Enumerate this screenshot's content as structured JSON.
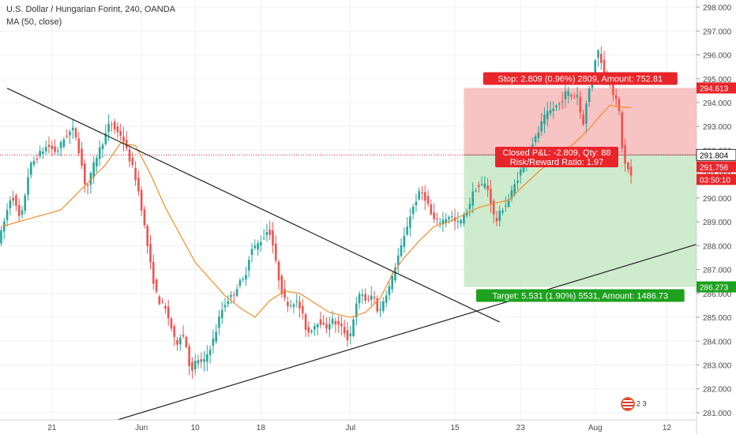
{
  "header": {
    "title": "U.S. Dollar / Hungarian Forint, 240, OANDA",
    "indicator": "MA (50, close)"
  },
  "colors": {
    "up": "#26a69a",
    "down": "#ef5350",
    "ma": "#f28c28",
    "stop_zone": "#f7b9b9",
    "target_zone": "#c9e9c9",
    "stop_label": "#e8252a",
    "target_label": "#1ea11e",
    "trendline": "#222222",
    "price_line": "#e8252a",
    "grid": "#eef0f3"
  },
  "logo": {
    "icon": "tradingview-flag-badge-icon",
    "pages": "2 3"
  },
  "chart_data": {
    "type": "candlestick",
    "symbol": "USDHUF",
    "interval": "240",
    "source": "OANDA",
    "ylim": [
      280.7,
      298.3
    ],
    "y_ticks": [
      281,
      282,
      283,
      284,
      285,
      286,
      287,
      288,
      289,
      290,
      291,
      292,
      293,
      294,
      295,
      296,
      297,
      298
    ],
    "y_tick_labels": [
      "281.000",
      "282.000",
      "283.000",
      "284.000",
      "285.000",
      "286.000",
      "287.000",
      "288.000",
      "289.000",
      "290.000",
      "291.000",
      "292.000",
      "293.000",
      "294.000",
      "295.000",
      "296.000",
      "297.000",
      "298.000"
    ],
    "x_ticks": [
      {
        "label": "21",
        "index": 17
      },
      {
        "label": "Jun",
        "index": 47
      },
      {
        "label": "10",
        "index": 65
      },
      {
        "label": "18",
        "index": 87
      },
      {
        "label": "Jul",
        "index": 117
      },
      {
        "label": "15",
        "index": 152
      },
      {
        "label": "23",
        "index": 174
      },
      {
        "label": "Aug",
        "index": 199
      },
      {
        "label": "12",
        "index": 223
      }
    ],
    "bar_count": 232,
    "anchors": [
      [
        0,
        288.3
      ],
      [
        4,
        290.2
      ],
      [
        7,
        289.0
      ],
      [
        10,
        291.3
      ],
      [
        13,
        291.8
      ],
      [
        16,
        292.2
      ],
      [
        19,
        291.9
      ],
      [
        22,
        292.6
      ],
      [
        25,
        292.9
      ],
      [
        27,
        291.7
      ],
      [
        29,
        290.3
      ],
      [
        32,
        291.6
      ],
      [
        35,
        292.5
      ],
      [
        37,
        293.2
      ],
      [
        39,
        292.8
      ],
      [
        41,
        292.6
      ],
      [
        43,
        291.8
      ],
      [
        45,
        291.1
      ],
      [
        47,
        290.0
      ],
      [
        49,
        288.4
      ],
      [
        51,
        286.8
      ],
      [
        53,
        285.7
      ],
      [
        55,
        285.5
      ],
      [
        57,
        284.8
      ],
      [
        59,
        283.8
      ],
      [
        61,
        284.4
      ],
      [
        63,
        283.6
      ],
      [
        64,
        282.5
      ],
      [
        66,
        283.3
      ],
      [
        68,
        283.0
      ],
      [
        70,
        283.6
      ],
      [
        72,
        284.2
      ],
      [
        74,
        285.2
      ],
      [
        76,
        285.7
      ],
      [
        78,
        285.9
      ],
      [
        80,
        286.4
      ],
      [
        82,
        286.6
      ],
      [
        84,
        287.8
      ],
      [
        86,
        288.0
      ],
      [
        88,
        288.3
      ],
      [
        90,
        288.7
      ],
      [
        91,
        288.4
      ],
      [
        93,
        286.9
      ],
      [
        95,
        285.8
      ],
      [
        97,
        285.5
      ],
      [
        99,
        285.7
      ],
      [
        101,
        285.3
      ],
      [
        103,
        284.3
      ],
      [
        105,
        284.6
      ],
      [
        107,
        284.9
      ],
      [
        109,
        284.5
      ],
      [
        111,
        284.9
      ],
      [
        113,
        284.7
      ],
      [
        115,
        284.5
      ],
      [
        117,
        284.0
      ],
      [
        119,
        285.3
      ],
      [
        121,
        286.1
      ],
      [
        123,
        285.6
      ],
      [
        125,
        286.0
      ],
      [
        127,
        285.1
      ],
      [
        129,
        285.9
      ],
      [
        131,
        286.4
      ],
      [
        133,
        287.4
      ],
      [
        135,
        288.1
      ],
      [
        137,
        289.1
      ],
      [
        139,
        289.8
      ],
      [
        141,
        290.3
      ],
      [
        143,
        289.9
      ],
      [
        145,
        289.1
      ],
      [
        147,
        289.0
      ],
      [
        149,
        289.1
      ],
      [
        151,
        289.3
      ],
      [
        153,
        288.9
      ],
      [
        155,
        289.1
      ],
      [
        157,
        289.6
      ],
      [
        159,
        290.4
      ],
      [
        161,
        290.5
      ],
      [
        163,
        290.6
      ],
      [
        165,
        289.6
      ],
      [
        166,
        288.9
      ],
      [
        168,
        289.5
      ],
      [
        170,
        289.8
      ],
      [
        172,
        290.4
      ],
      [
        174,
        291.0
      ],
      [
        176,
        291.6
      ],
      [
        178,
        292.2
      ],
      [
        180,
        292.6
      ],
      [
        182,
        293.3
      ],
      [
        184,
        293.6
      ],
      [
        186,
        293.8
      ],
      [
        188,
        294.0
      ],
      [
        190,
        294.5
      ],
      [
        192,
        294.2
      ],
      [
        194,
        294.4
      ],
      [
        195,
        292.8
      ],
      [
        197,
        294.3
      ],
      [
        199,
        295.4
      ],
      [
        200,
        296.3
      ],
      [
        201,
        296.0
      ],
      [
        203,
        295.0
      ],
      [
        205,
        294.9
      ],
      [
        206,
        293.9
      ],
      [
        207,
        294.2
      ],
      [
        208,
        293.0
      ],
      [
        209,
        291.3
      ],
      [
        210,
        291.5
      ],
      [
        211,
        290.9
      ]
    ],
    "series": [
      {
        "name": "MA (50, close)",
        "type": "line",
        "points": [
          [
            0,
            288.8
          ],
          [
            20,
            289.5
          ],
          [
            35,
            291.4
          ],
          [
            40,
            292.3
          ],
          [
            45,
            292.2
          ],
          [
            50,
            291.0
          ],
          [
            55,
            289.6
          ],
          [
            65,
            287.3
          ],
          [
            75,
            285.9
          ],
          [
            80,
            285.4
          ],
          [
            85,
            285.0
          ],
          [
            90,
            285.7
          ],
          [
            95,
            286.1
          ],
          [
            100,
            286.0
          ],
          [
            105,
            285.6
          ],
          [
            110,
            285.2
          ],
          [
            117,
            285.0
          ],
          [
            122,
            285.2
          ],
          [
            127,
            285.8
          ],
          [
            131,
            286.8
          ],
          [
            135,
            287.5
          ],
          [
            140,
            288.2
          ],
          [
            145,
            288.8
          ],
          [
            150,
            289.0
          ],
          [
            155,
            289.3
          ],
          [
            160,
            289.6
          ],
          [
            166,
            289.8
          ],
          [
            170,
            289.9
          ],
          [
            174,
            290.4
          ],
          [
            180,
            291.1
          ],
          [
            186,
            291.7
          ],
          [
            192,
            292.3
          ],
          [
            197,
            292.9
          ],
          [
            201,
            293.5
          ],
          [
            204,
            293.9
          ],
          [
            207,
            293.8
          ],
          [
            211,
            293.8
          ]
        ]
      }
    ],
    "trendlines": [
      {
        "name": "descending-resistance",
        "from": [
          2,
          294.6
        ],
        "to": [
          167,
          284.8
        ]
      },
      {
        "name": "ascending-support",
        "from": [
          39,
          280.7
        ],
        "to": [
          242,
          288.4
        ]
      }
    ],
    "position": {
      "type": "long",
      "x_start": 155,
      "x_end": 233,
      "entry": 291.804,
      "stop": 294.613,
      "target": 286.273,
      "stop_label": "Stop: 2.809 (0.96%) 2809, Amount: 752.81",
      "target_label": "Target: 5.531 (1.90%) 5531, Amount: 1486.73",
      "pnl_label": "Closed P&L: -2.809, Qty: 88",
      "rr_label": "Risk/Reward Ratio: 1.97"
    },
    "price_tags": [
      {
        "value": 294.613,
        "label": "294.613",
        "style": "stop"
      },
      {
        "value": 291.804,
        "label": "291.804",
        "style": "entry"
      },
      {
        "value": 291.756,
        "label": "291.756",
        "style": "last"
      },
      {
        "value": 291.2,
        "label": "03:50:10",
        "style": "countdown"
      },
      {
        "value": 286.273,
        "label": "286.273",
        "style": "target"
      }
    ]
  }
}
